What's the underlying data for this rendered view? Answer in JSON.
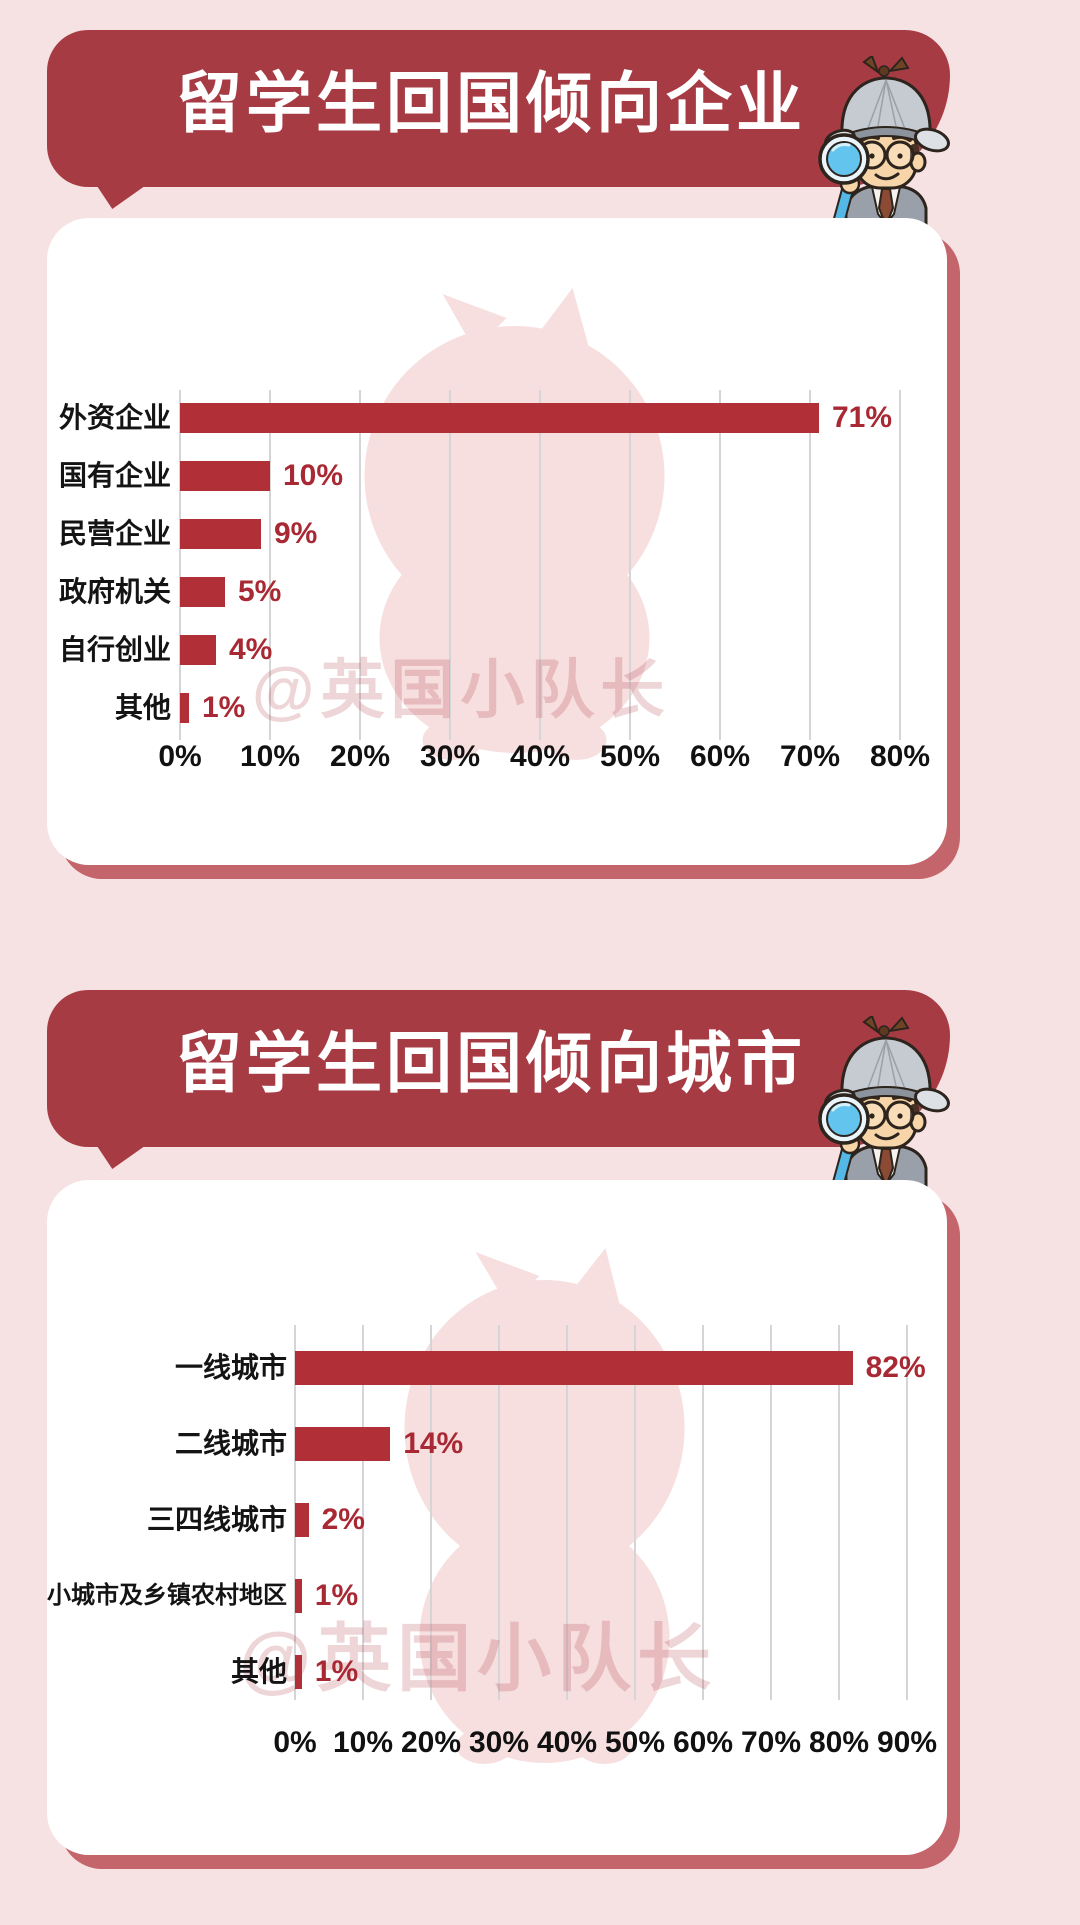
{
  "page": {
    "background_color": "#f6e2e2",
    "watermark_handle": "@英国小队长",
    "accent_colors": {
      "banner_red": "#a73b43",
      "bar_red": "#b13037",
      "value_red": "#a82833",
      "card_shadow_red": "#c4646b",
      "grid_gray": "#d5d5d7",
      "blob_pink": "#f7dfe0",
      "title_white": "#ffffff",
      "label_black": "#141414"
    }
  },
  "sections": [
    {
      "title": "留学生回国倾向企业"
    },
    {
      "title": "留学生回国倾向城市"
    }
  ],
  "chart_data": [
    {
      "type": "bar",
      "orientation": "horizontal",
      "title": "留学生回国倾向企业",
      "categories": [
        "外资企业",
        "国有企业",
        "民营企业",
        "政府机关",
        "自行创业",
        "其他"
      ],
      "values": [
        71,
        10,
        9,
        5,
        4,
        1
      ],
      "data_labels": [
        "71%",
        "10%",
        "9%",
        "5%",
        "4%",
        "1%"
      ],
      "x_tick_labels": [
        "0%",
        "10%",
        "20%",
        "30%",
        "40%",
        "50%",
        "60%",
        "70%",
        "80%"
      ],
      "xlim": [
        0,
        80
      ],
      "grid": "vertical",
      "legend": "none",
      "bar_color": "#b13037"
    },
    {
      "type": "bar",
      "orientation": "horizontal",
      "title": "留学生回国倾向城市",
      "categories": [
        "一线城市",
        "二线城市",
        "三四线城市",
        "小城市及乡镇农村地区",
        "其他"
      ],
      "values": [
        82,
        14,
        2,
        1,
        1
      ],
      "data_labels": [
        "82%",
        "14%",
        "2%",
        "1%",
        "1%"
      ],
      "x_tick_labels": [
        "0%",
        "10%",
        "20%",
        "30%",
        "40%",
        "50%",
        "60%",
        "70%",
        "80%",
        "90%"
      ],
      "xlim": [
        0,
        90
      ],
      "grid": "vertical",
      "legend": "none",
      "bar_color": "#b13037"
    }
  ]
}
